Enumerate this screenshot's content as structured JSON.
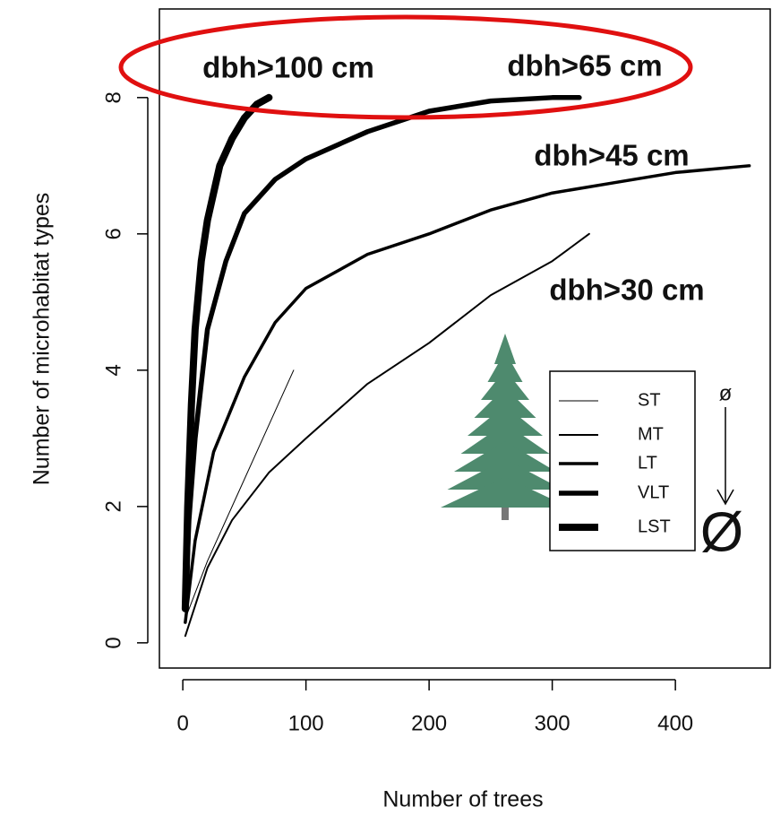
{
  "chart_data": {
    "type": "line",
    "xlabel": "Number of trees",
    "ylabel": "Number of microhabitat types",
    "xlim": [
      -19,
      477
    ],
    "ylim": [
      -0.37,
      9.3
    ],
    "xticks": [
      0,
      100,
      200,
      300,
      400
    ],
    "yticks": [
      0,
      2,
      4,
      6,
      8
    ],
    "color": "#000000",
    "series": [
      {
        "name": "ST",
        "linewidth": 1,
        "x": [
          3,
          20,
          40,
          60,
          90
        ],
        "values": [
          0.4,
          1.2,
          2.0,
          2.8,
          4.0
        ]
      },
      {
        "name": "MT",
        "linewidth": 2,
        "x": [
          2,
          20,
          40,
          70,
          100,
          150,
          200,
          250,
          300,
          330
        ],
        "values": [
          0.1,
          1.1,
          1.8,
          2.5,
          3.0,
          3.8,
          4.4,
          5.1,
          5.6,
          6.0
        ]
      },
      {
        "name": "LT",
        "linewidth": 3.5,
        "x": [
          2,
          10,
          25,
          50,
          75,
          100,
          150,
          200,
          250,
          300,
          350,
          400,
          460
        ],
        "values": [
          0.3,
          1.5,
          2.8,
          3.9,
          4.7,
          5.2,
          5.7,
          6.0,
          6.35,
          6.6,
          6.75,
          6.9,
          7.0
        ]
      },
      {
        "name": "VLT",
        "linewidth": 5.5,
        "x": [
          2,
          5,
          10,
          20,
          35,
          50,
          75,
          100,
          150,
          200,
          250,
          300,
          322
        ],
        "values": [
          0.5,
          1.8,
          3.0,
          4.6,
          5.6,
          6.3,
          6.8,
          7.1,
          7.5,
          7.8,
          7.95,
          8.0,
          8.0
        ]
      },
      {
        "name": "LST",
        "linewidth": 8,
        "x": [
          2,
          4,
          7,
          10,
          15,
          20,
          30,
          40,
          50,
          60,
          70
        ],
        "values": [
          0.5,
          2.0,
          3.5,
          4.6,
          5.6,
          6.2,
          7.0,
          7.4,
          7.7,
          7.9,
          8.0
        ]
      }
    ],
    "annotations": [
      "dbh>100 cm",
      "dbh>65 cm",
      "dbh>45 cm",
      "dbh>30 cm"
    ],
    "symbols": [
      "ø",
      "Ø"
    ],
    "highlight_color": "#e01010",
    "tree_color": "#4e8a6e"
  }
}
